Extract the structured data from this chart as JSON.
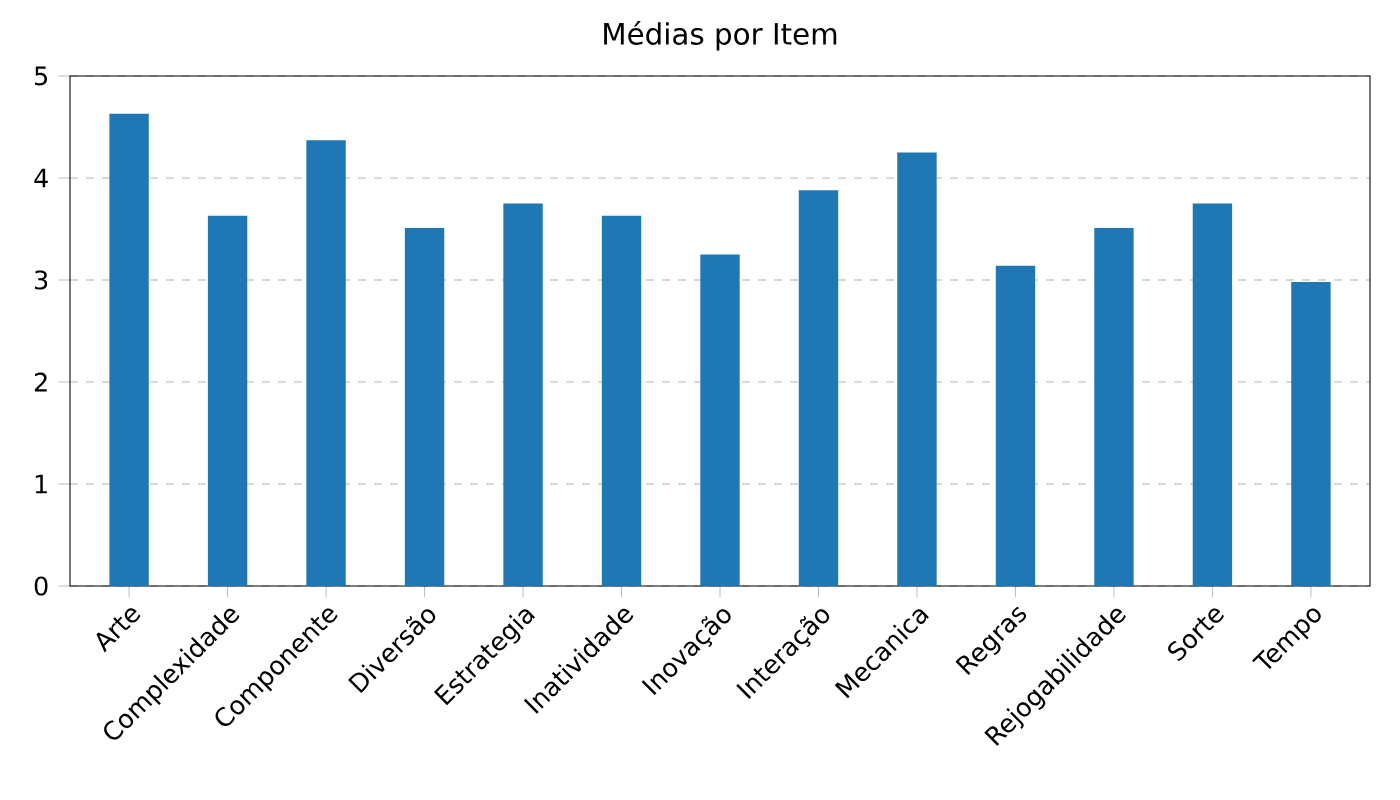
{
  "chart_data": {
    "type": "bar",
    "title": "Médias por Item",
    "categories": [
      "Arte",
      "Complexidade",
      "Componente",
      "Diversão",
      "Estrategia",
      "Inatividade",
      "Inovação",
      "Interação",
      "Mecanica",
      "Regras",
      "Rejogabilidade",
      "Sorte",
      "Tempo"
    ],
    "values": [
      4.63,
      3.63,
      4.37,
      3.51,
      3.75,
      3.63,
      3.25,
      3.88,
      4.25,
      3.14,
      3.51,
      3.75,
      2.98
    ],
    "color": "#1f77b4",
    "ylim": [
      0,
      5
    ],
    "yticks": [
      0,
      1,
      2,
      3,
      4,
      5
    ],
    "grid": "y"
  }
}
